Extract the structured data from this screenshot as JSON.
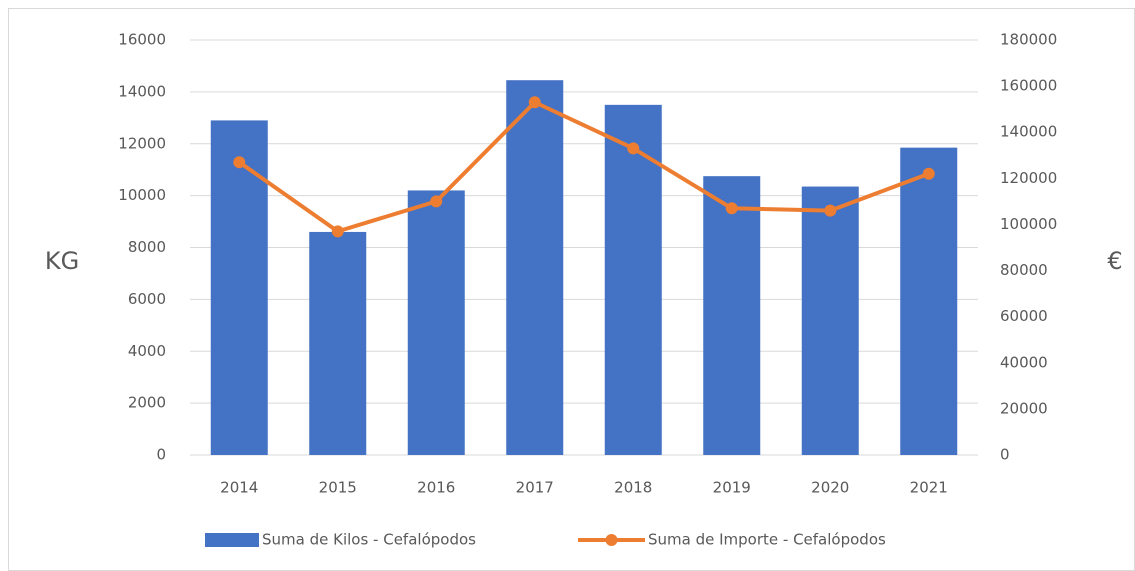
{
  "chart_data": {
    "type": "bar",
    "ylabel": "KG",
    "y2label": "€",
    "categories": [
      "2014",
      "2015",
      "2016",
      "2017",
      "2018",
      "2019",
      "2020",
      "2021"
    ],
    "series": [
      {
        "name": "Suma de Kilos - Cefalópodos",
        "type": "bar",
        "color": "#4472c4",
        "values": [
          12900,
          8600,
          10200,
          14450,
          13500,
          10750,
          10350,
          11850
        ]
      },
      {
        "name": "Suma de Importe - Cefalópodos",
        "type": "line",
        "axis": "y2",
        "color": "#ed7d31",
        "values": [
          127000,
          97000,
          110000,
          153000,
          133000,
          107000,
          106000,
          122000
        ]
      }
    ],
    "ylim": [
      0,
      16000
    ],
    "yticks": [
      0,
      2000,
      4000,
      6000,
      8000,
      10000,
      12000,
      14000,
      16000
    ],
    "y2lim": [
      0,
      180000
    ],
    "y2ticks": [
      0,
      20000,
      40000,
      60000,
      80000,
      100000,
      120000,
      140000,
      160000,
      180000
    ],
    "grid": true,
    "legend": "bottom"
  }
}
